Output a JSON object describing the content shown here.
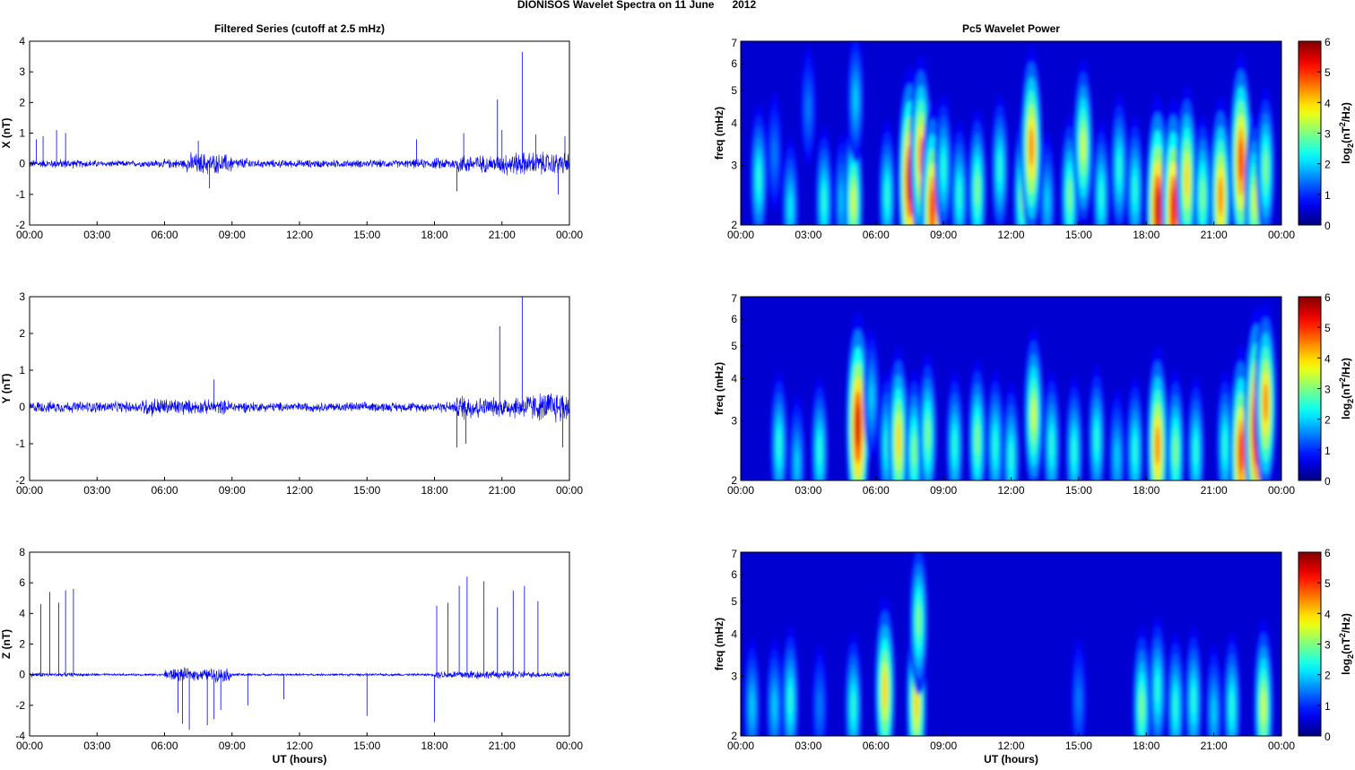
{
  "figure_title": "DIONISOS Wavelet Spectra on 11 June      2012",
  "chart_data": [
    {
      "type": "line",
      "panel": "X",
      "title": "Filtered Series (cutoff at 2.5 mHz)",
      "xlabel": "",
      "ylabel": "X (nT)",
      "xlim": [
        0,
        24
      ],
      "ylim": [
        -2,
        4
      ],
      "xticks": [
        "00:00",
        "03:00",
        "06:00",
        "09:00",
        "12:00",
        "15:00",
        "18:00",
        "21:00",
        "00:00"
      ],
      "yticks": [
        "-2",
        "-1",
        "0",
        "1",
        "2",
        "3",
        "4"
      ],
      "noise_amplitude_per_hour": [
        0.1,
        0.12,
        0.1,
        0.08,
        0.08,
        0.1,
        0.12,
        0.28,
        0.25,
        0.15,
        0.1,
        0.1,
        0.1,
        0.1,
        0.1,
        0.1,
        0.1,
        0.12,
        0.15,
        0.25,
        0.22,
        0.3,
        0.3,
        0.28
      ],
      "spikes": [
        [
          0.3,
          0.8
        ],
        [
          0.6,
          0.9
        ],
        [
          1.2,
          1.1
        ],
        [
          1.6,
          1.0
        ],
        [
          7.5,
          0.75
        ],
        [
          8.0,
          -0.8
        ],
        [
          17.2,
          0.8
        ],
        [
          19.0,
          -0.9
        ],
        [
          19.3,
          1.0
        ],
        [
          20.8,
          2.1
        ],
        [
          21.0,
          1.1
        ],
        [
          21.9,
          3.65
        ],
        [
          22.5,
          0.95
        ],
        [
          23.5,
          -1.0
        ],
        [
          23.8,
          0.9
        ]
      ],
      "color": "#0000ff"
    },
    {
      "type": "line",
      "panel": "Y",
      "title": "",
      "xlabel": "",
      "ylabel": "Y (nT)",
      "xlim": [
        0,
        24
      ],
      "ylim": [
        -2,
        3
      ],
      "xticks": [
        "00:00",
        "03:00",
        "06:00",
        "09:00",
        "12:00",
        "15:00",
        "18:00",
        "21:00",
        "00:00"
      ],
      "yticks": [
        "-2",
        "-1",
        "0",
        "1",
        "2",
        "3"
      ],
      "noise_amplitude_per_hour": [
        0.12,
        0.12,
        0.12,
        0.12,
        0.12,
        0.2,
        0.18,
        0.15,
        0.15,
        0.12,
        0.1,
        0.1,
        0.1,
        0.1,
        0.1,
        0.1,
        0.1,
        0.1,
        0.12,
        0.28,
        0.2,
        0.25,
        0.3,
        0.35
      ],
      "spikes": [
        [
          8.2,
          0.75
        ],
        [
          19.0,
          -1.1
        ],
        [
          19.4,
          -1.0
        ],
        [
          20.9,
          2.2
        ],
        [
          21.9,
          3.0
        ],
        [
          23.7,
          -1.1
        ],
        [
          24.0,
          1.6
        ]
      ],
      "color": "#0000ff"
    },
    {
      "type": "line",
      "panel": "Z",
      "title": "",
      "xlabel": "UT (hours)",
      "ylabel": "Z (nT)",
      "xlim": [
        0,
        24
      ],
      "ylim": [
        -4,
        8
      ],
      "xticks": [
        "00:00",
        "03:00",
        "06:00",
        "09:00",
        "12:00",
        "15:00",
        "18:00",
        "21:00",
        "00:00"
      ],
      "yticks": [
        "-4",
        "-2",
        "0",
        "2",
        "4",
        "6",
        "8"
      ],
      "noise_amplitude_per_hour": [
        0.12,
        0.1,
        0.08,
        0.06,
        0.06,
        0.06,
        0.35,
        0.3,
        0.35,
        0.08,
        0.06,
        0.06,
        0.06,
        0.06,
        0.06,
        0.06,
        0.06,
        0.06,
        0.2,
        0.25,
        0.2,
        0.2,
        0.15,
        0.15
      ],
      "spikes": [
        [
          0.5,
          4.6
        ],
        [
          0.9,
          5.4
        ],
        [
          1.3,
          4.7
        ],
        [
          1.6,
          5.5
        ],
        [
          1.95,
          5.6
        ],
        [
          18.1,
          4.5
        ],
        [
          18.6,
          4.7
        ],
        [
          19.1,
          5.8
        ],
        [
          19.45,
          6.4
        ],
        [
          20.2,
          6.1
        ],
        [
          20.8,
          4.4
        ],
        [
          21.5,
          5.5
        ],
        [
          22.0,
          5.8
        ],
        [
          22.6,
          4.8
        ],
        [
          6.6,
          -2.5
        ],
        [
          6.8,
          -3.2
        ],
        [
          7.1,
          -3.6
        ],
        [
          7.9,
          -3.3
        ],
        [
          8.2,
          -2.9
        ],
        [
          8.5,
          -2.3
        ],
        [
          9.7,
          -2.0
        ],
        [
          11.3,
          -1.6
        ],
        [
          15.0,
          -2.7
        ],
        [
          18.0,
          -3.1
        ]
      ],
      "color": "#0000ff"
    },
    {
      "type": "heatmap",
      "panel": "X",
      "title": "Pc5 Wavelet Power",
      "xlabel": "",
      "ylabel": "freq (mHz)",
      "xlim": [
        0,
        24
      ],
      "ylim": [
        2,
        7
      ],
      "yscale": "log",
      "xticks": [
        "00:00",
        "03:00",
        "06:00",
        "09:00",
        "12:00",
        "15:00",
        "18:00",
        "21:00",
        "00:00"
      ],
      "yticks": [
        "2",
        "3",
        "4",
        "5",
        "6",
        "7"
      ],
      "colorbar": {
        "label": "log2(nT^2/Hz)",
        "range": [
          0,
          6
        ],
        "ticks": [
          "0",
          "1",
          "2",
          "3",
          "4",
          "5",
          "6"
        ],
        "colormap": "jet"
      },
      "power_peaks_time_freq_power": [
        [
          0.8,
          2.8,
          2.5
        ],
        [
          1.5,
          3.3,
          1.5
        ],
        [
          2.2,
          2.3,
          2.2
        ],
        [
          3.0,
          4.5,
          1.5
        ],
        [
          3.7,
          2.4,
          2.5
        ],
        [
          4.5,
          2.4,
          2
        ],
        [
          5.0,
          2.4,
          3.5
        ],
        [
          5.1,
          4.8,
          2
        ],
        [
          6.5,
          2.5,
          2.5
        ],
        [
          7.5,
          2.8,
          5.5
        ],
        [
          8.0,
          3.3,
          4.5
        ],
        [
          8.5,
          2.3,
          5
        ],
        [
          9.0,
          3.0,
          2.5
        ],
        [
          9.7,
          2.5,
          2.5
        ],
        [
          10.5,
          2.6,
          3
        ],
        [
          11.5,
          3.0,
          2.5
        ],
        [
          12.5,
          2.5,
          3
        ],
        [
          12.9,
          3.5,
          4.5
        ],
        [
          13.6,
          2.4,
          2
        ],
        [
          14.6,
          2.5,
          3
        ],
        [
          15.2,
          3.5,
          3.5
        ],
        [
          16.0,
          2.5,
          2.5
        ],
        [
          16.8,
          3.0,
          2.5
        ],
        [
          17.5,
          2.6,
          2.5
        ],
        [
          18.5,
          2.3,
          5.5
        ],
        [
          19.2,
          2.3,
          5.3
        ],
        [
          19.8,
          2.8,
          4
        ],
        [
          20.5,
          2.5,
          3
        ],
        [
          21.3,
          2.5,
          4.5
        ],
        [
          22.2,
          3.2,
          5
        ],
        [
          22.8,
          2.4,
          3.5
        ],
        [
          23.3,
          3.0,
          3
        ]
      ]
    },
    {
      "type": "heatmap",
      "panel": "Y",
      "title": "",
      "xlabel": "",
      "ylabel": "freq (mHz)",
      "xlim": [
        0,
        24
      ],
      "ylim": [
        2,
        7
      ],
      "yscale": "log",
      "xticks": [
        "00:00",
        "03:00",
        "06:00",
        "09:00",
        "12:00",
        "15:00",
        "18:00",
        "21:00",
        "00:00"
      ],
      "yticks": [
        "2",
        "3",
        "4",
        "5",
        "6",
        "7"
      ],
      "colorbar": {
        "label": "log2(nT^2/Hz)",
        "range": [
          0,
          6
        ],
        "ticks": [
          "0",
          "1",
          "2",
          "3",
          "4",
          "5",
          "6"
        ],
        "colormap": "jet"
      },
      "power_peaks_time_freq_power": [
        [
          1.7,
          2.6,
          2.5
        ],
        [
          2.5,
          2.3,
          2
        ],
        [
          3.5,
          2.5,
          2.5
        ],
        [
          5.2,
          3.0,
          5.5
        ],
        [
          5.8,
          3.6,
          2
        ],
        [
          6.5,
          2.6,
          2.5
        ],
        [
          7.0,
          2.7,
          4
        ],
        [
          7.7,
          2.5,
          3
        ],
        [
          8.3,
          2.8,
          3
        ],
        [
          9.5,
          2.6,
          2.5
        ],
        [
          10.5,
          2.7,
          3
        ],
        [
          11.3,
          2.6,
          2.5
        ],
        [
          12.0,
          2.4,
          2.5
        ],
        [
          13.0,
          3.2,
          3.5
        ],
        [
          13.8,
          2.6,
          2.5
        ],
        [
          14.8,
          2.5,
          2.5
        ],
        [
          15.8,
          2.7,
          2.5
        ],
        [
          16.7,
          2.4,
          2
        ],
        [
          17.5,
          2.5,
          2.5
        ],
        [
          18.5,
          2.6,
          4.5
        ],
        [
          19.3,
          2.5,
          3
        ],
        [
          20.2,
          2.5,
          2.5
        ],
        [
          21.5,
          2.6,
          2.5
        ],
        [
          22.2,
          2.5,
          5
        ],
        [
          22.9,
          3.0,
          6
        ],
        [
          23.3,
          3.5,
          4.5
        ]
      ]
    },
    {
      "type": "heatmap",
      "panel": "Z",
      "title": "",
      "xlabel": "UT (hours)",
      "ylabel": "freq (mHz)",
      "xlim": [
        0,
        24
      ],
      "ylim": [
        2,
        7
      ],
      "yscale": "log",
      "xticks": [
        "00:00",
        "03:00",
        "06:00",
        "09:00",
        "12:00",
        "15:00",
        "18:00",
        "21:00",
        "00:00"
      ],
      "yticks": [
        "2",
        "3",
        "4",
        "5",
        "6",
        "7"
      ],
      "colorbar": {
        "label": "log2(nT^2/Hz)",
        "range": [
          0,
          6
        ],
        "ticks": [
          "0",
          "1",
          "2",
          "3",
          "4",
          "5",
          "6"
        ],
        "colormap": "jet"
      },
      "power_peaks_time_freq_power": [
        [
          0.5,
          2.5,
          2
        ],
        [
          1.5,
          2.5,
          2
        ],
        [
          2.2,
          2.6,
          2.5
        ],
        [
          3.5,
          2.5,
          1.5
        ],
        [
          5.0,
          2.5,
          2.5
        ],
        [
          6.4,
          2.8,
          4
        ],
        [
          7.8,
          2.6,
          4
        ],
        [
          7.9,
          4.5,
          3
        ],
        [
          15.0,
          2.6,
          1.5
        ],
        [
          17.8,
          2.5,
          3
        ],
        [
          18.5,
          2.8,
          2.5
        ],
        [
          19.3,
          2.5,
          2.5
        ],
        [
          20.1,
          2.6,
          2.5
        ],
        [
          21.0,
          2.4,
          2
        ],
        [
          21.8,
          2.5,
          2.5
        ],
        [
          23.2,
          2.5,
          3.5
        ]
      ]
    }
  ]
}
